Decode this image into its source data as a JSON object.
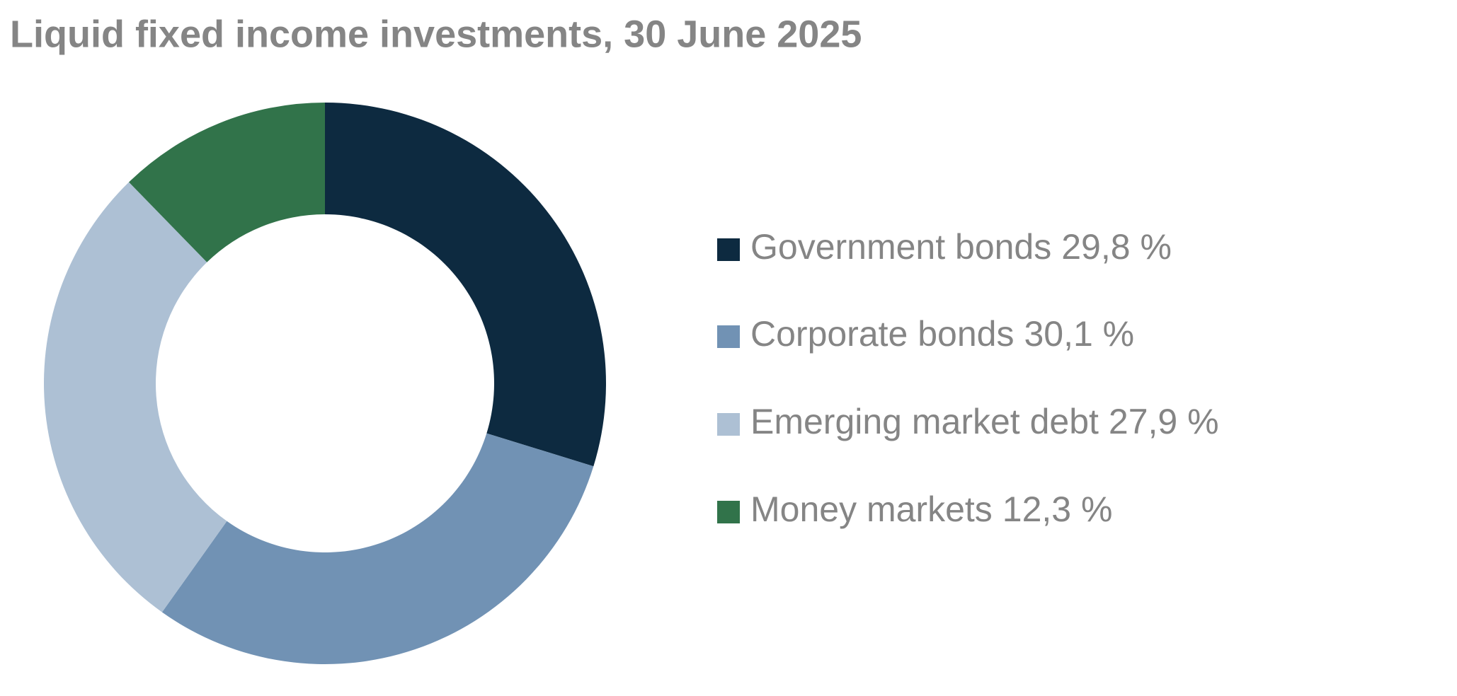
{
  "chart_data": {
    "type": "pie",
    "title": "Liquid fixed income investments, 30 June 2025",
    "categories": [
      "Government bonds",
      "Corporate bonds",
      "Emerging market debt",
      "Money markets"
    ],
    "values": [
      29.8,
      30.1,
      27.9,
      12.3
    ],
    "value_labels": [
      "29,8 %",
      "30,1 %",
      "27,9 %",
      "12,3 %"
    ],
    "colors": [
      "#0d2a40",
      "#7192b4",
      "#adc0d4",
      "#31734a"
    ],
    "legend": "right"
  }
}
